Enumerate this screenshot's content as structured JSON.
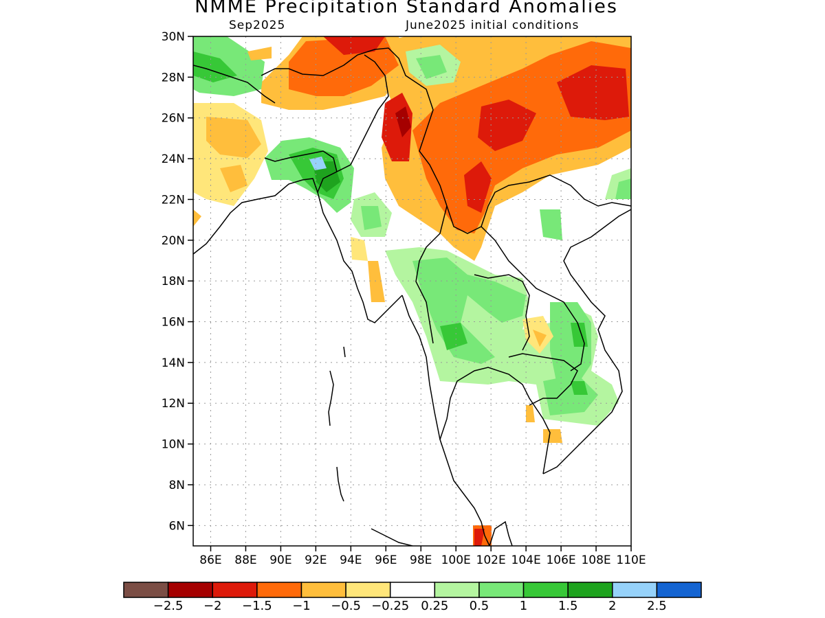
{
  "title": "NMME Precipitation Standard Anomalies",
  "subtitle_left": "Sep2025",
  "subtitle_right": "June2025 initial conditions",
  "lat_ticks": [
    "30N",
    "28N",
    "26N",
    "24N",
    "22N",
    "20N",
    "18N",
    "16N",
    "14N",
    "12N",
    "10N",
    "8N",
    "6N"
  ],
  "lon_ticks": [
    "86E",
    "88E",
    "90E",
    "92E",
    "94E",
    "96E",
    "98E",
    "100E",
    "102E",
    "104E",
    "106E",
    "108E",
    "110E"
  ],
  "colorbar": {
    "colors": [
      "#7b4e45",
      "#a50000",
      "#dd1a0a",
      "#ff6a0a",
      "#ffbe3c",
      "#ffe67a",
      "#ffffff",
      "#b4f5a0",
      "#78e878",
      "#37c837",
      "#1ea31e",
      "#96d2fa",
      "#1464d2"
    ],
    "labels": [
      "−2.5",
      "−2",
      "−1.5",
      "−1",
      "−0.5",
      "−0.25",
      "0.25",
      "0.5",
      "1",
      "1.5",
      "2",
      "2.5"
    ]
  }
}
